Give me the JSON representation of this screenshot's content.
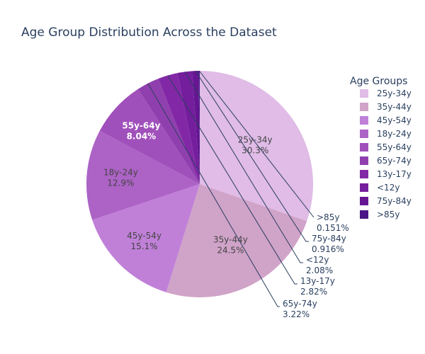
{
  "chart_data": {
    "type": "pie",
    "title": "Age Group Distribution Across the Dataset",
    "legend": {
      "title": "Age Groups",
      "placement": "right"
    },
    "slices": [
      {
        "label": "25y-34y",
        "percent_text": "30.3%",
        "value": 30.3,
        "color": "#e0bce7",
        "text_color": "#444444"
      },
      {
        "label": "35y-44y",
        "percent_text": "24.5%",
        "value": 24.5,
        "color": "#d0a3c8",
        "text_color": "#444444"
      },
      {
        "label": "45y-54y",
        "percent_text": "15.1%",
        "value": 15.1,
        "color": "#c080d8",
        "text_color": "#444444"
      },
      {
        "label": "18y-24y",
        "percent_text": "12.9%",
        "value": 12.9,
        "color": "#ad63c6",
        "text_color": "#444444"
      },
      {
        "label": "55y-64y",
        "percent_text": "8.04%",
        "value": 8.04,
        "color": "#a050bb",
        "text_color": "#ffffff"
      },
      {
        "label": "65y-74y",
        "percent_text": "3.22%",
        "value": 3.22,
        "color": "#9040ae",
        "text_color": "#2a3f5f"
      },
      {
        "label": "13y-17y",
        "percent_text": "2.82%",
        "value": 2.82,
        "color": "#8228a6",
        "text_color": "#2a3f5f"
      },
      {
        "label": "<12y",
        "percent_text": "2.08%",
        "value": 2.08,
        "color": "#741e9d",
        "text_color": "#2a3f5f"
      },
      {
        "label": "75y-84y",
        "percent_text": "0.916%",
        "value": 0.916,
        "color": "#661692",
        "text_color": "#2a3f5f"
      },
      {
        "label": ">85y",
        "percent_text": "0.151%",
        "value": 0.151,
        "color": "#4a1486",
        "text_color": "#2a3f5f"
      }
    ],
    "start_angle_deg": 90,
    "direction": "clockwise"
  }
}
